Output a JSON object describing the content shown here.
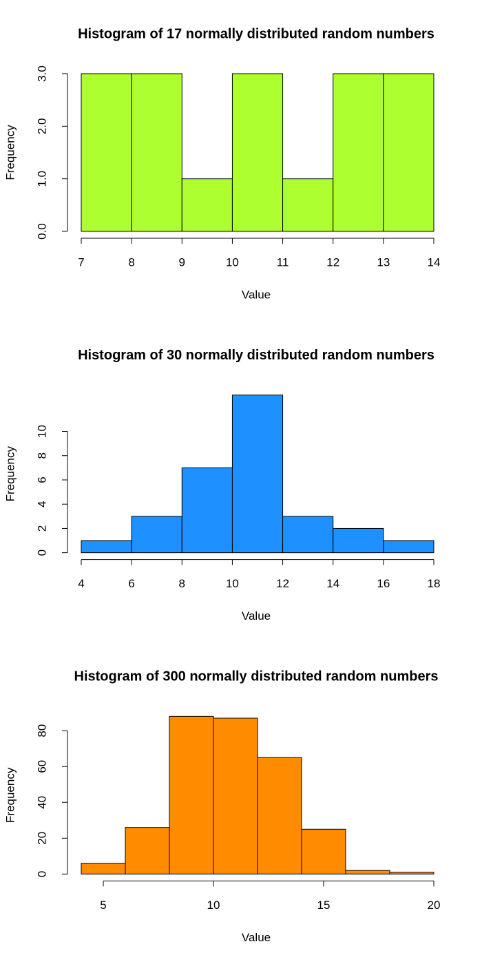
{
  "chart_data": [
    {
      "type": "histogram",
      "title": "Histogram of 17 normally distributed random numbers",
      "xlabel": "Value",
      "ylabel": "Frequency",
      "bins": [
        7,
        8,
        9,
        10,
        11,
        12,
        13,
        14
      ],
      "values": [
        3,
        3,
        1,
        3,
        1,
        3,
        3
      ],
      "color": "#adff2f",
      "xlim": [
        7,
        14
      ],
      "xticks": [
        7,
        8,
        9,
        10,
        11,
        12,
        13,
        14
      ],
      "ylim": [
        0,
        3
      ],
      "yticks": [
        {
          "value": 0,
          "label": "0.0"
        },
        {
          "value": 1,
          "label": "1.0"
        },
        {
          "value": 2,
          "label": "2.0"
        },
        {
          "value": 3,
          "label": "3.0"
        }
      ]
    },
    {
      "type": "histogram",
      "title": "Histogram of 30 normally distributed random numbers",
      "xlabel": "Value",
      "ylabel": "Frequency",
      "bins": [
        4,
        6,
        8,
        10,
        12,
        14,
        16,
        18
      ],
      "values": [
        1,
        3,
        7,
        13,
        3,
        2,
        1
      ],
      "color": "#1e90ff",
      "xlim": [
        4,
        18
      ],
      "xticks": [
        4,
        6,
        8,
        10,
        12,
        14,
        16,
        18
      ],
      "ylim": [
        0,
        13
      ],
      "yticks": [
        0,
        2,
        4,
        6,
        8,
        10
      ]
    },
    {
      "type": "histogram",
      "title": "Histogram of 300 normally distributed random numbers",
      "xlabel": "Value",
      "ylabel": "Frequency",
      "bins": [
        4,
        6,
        8,
        10,
        12,
        14,
        16,
        18,
        20
      ],
      "values": [
        6,
        26,
        88,
        87,
        65,
        25,
        2,
        1
      ],
      "color": "#ff8c00",
      "xlim": [
        4,
        20
      ],
      "xticks": [
        5,
        10,
        15,
        20
      ],
      "ylim": [
        0,
        88
      ],
      "yticks": [
        0,
        20,
        40,
        60,
        80
      ]
    }
  ]
}
